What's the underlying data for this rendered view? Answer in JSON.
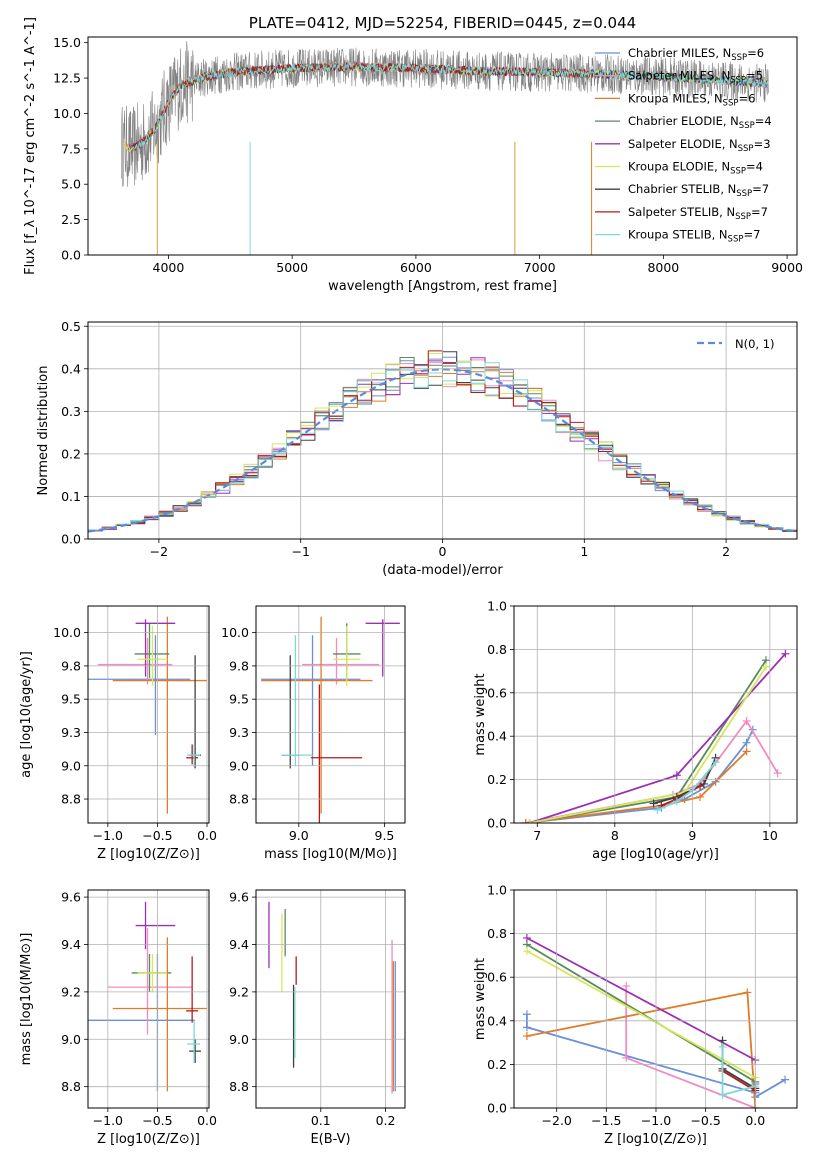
{
  "chart_data": [
    {
      "id": "spectrum",
      "type": "line",
      "title": "PLATE=0412, MJD=52254, FIBERID=0445, z=0.044",
      "xlabel": "wavelength [Angstrom, rest frame]",
      "ylabel": "Flux [f_λ 10^-17 erg cm^-2 s^-1 A^-1]",
      "xlim": [
        3350,
        9080
      ],
      "ylim": [
        0,
        15.4
      ],
      "xticks": [
        4000,
        5000,
        6000,
        7000,
        8000,
        9000
      ],
      "yticks": [
        0.0,
        2.5,
        5.0,
        7.5,
        10.0,
        12.5,
        15.0
      ],
      "grid": false,
      "legend_position": "top-right",
      "legend": [
        {
          "label": "Chabrier MILES, N",
          "sub": "SSP",
          "tail": "=6",
          "color": "#6b8fd6"
        },
        {
          "label": "Salpeter MILES, N",
          "sub": "SSP",
          "tail": "=5",
          "color": "#f08cc0"
        },
        {
          "label": "Kroupa MILES, N",
          "sub": "SSP",
          "tail": "=6",
          "color": "#e07b2a"
        },
        {
          "label": "Chabrier ELODIE, N",
          "sub": "SSP",
          "tail": "=4",
          "color": "#5a8a5a"
        },
        {
          "label": "Salpeter ELODIE, N",
          "sub": "SSP",
          "tail": "=3",
          "color": "#9b30b0"
        },
        {
          "label": "Kroupa ELODIE, N",
          "sub": "SSP",
          "tail": "=4",
          "color": "#d4e85a"
        },
        {
          "label": "Chabrier STELIB, N",
          "sub": "SSP",
          "tail": "=7",
          "color": "#404040"
        },
        {
          "label": "Salpeter STELIB, N",
          "sub": "SSP",
          "tail": "=7",
          "color": "#b01c1c"
        },
        {
          "label": "Kroupa STELIB, N",
          "sub": "SSP",
          "tail": "=7",
          "color": "#7fd8d8"
        }
      ],
      "data_color": "#808080",
      "continuum": {
        "x": [
          3620,
          3700,
          3800,
          3900,
          4000,
          4100,
          4300,
          4500,
          5000,
          5500,
          6000,
          6500,
          7000,
          7500,
          8000,
          8500,
          8850
        ],
        "y": [
          7.8,
          7.5,
          8.0,
          9.0,
          10.8,
          12.0,
          12.6,
          12.9,
          13.2,
          13.3,
          13.2,
          13.0,
          12.9,
          12.8,
          12.6,
          12.3,
          12.1
        ]
      }
    },
    {
      "id": "residuals",
      "type": "histogram",
      "xlabel": "(data-model)/error",
      "ylabel": "Normed distribution",
      "xlim": [
        -2.5,
        2.5
      ],
      "ylim": [
        0,
        0.51
      ],
      "xticks": [
        -2,
        -1,
        0,
        1,
        2
      ],
      "yticks": [
        0.0,
        0.1,
        0.2,
        0.3,
        0.4,
        0.5
      ],
      "grid": true,
      "legend_position": "top-right",
      "normal_label": "N(0, 1)",
      "normal_color": "#5b8cd9",
      "bin_width": 0.1
    },
    {
      "id": "age-vs-Z",
      "type": "errorbar",
      "xlabel": "Z [log10(Z/Z⊙)]",
      "ylabel": "age [log10(age/yr)]",
      "xlim": [
        -1.2,
        0.02
      ],
      "ylim": [
        8.57,
        10.2
      ],
      "xticks": [
        -1.0,
        -0.5,
        0.0
      ],
      "yticks": [
        8.75,
        9.0,
        9.25,
        9.5,
        9.75,
        10.0
      ],
      "grid": true,
      "points": [
        {
          "x": -0.52,
          "xerr": [
            0.68,
            0.35
          ],
          "y": 9.65,
          "yerr": [
            0.42,
            0.33
          ],
          "color": "#6b8fd6"
        },
        {
          "x": -0.6,
          "xerr": [
            0.5,
            0.25
          ],
          "y": 9.76,
          "yerr": [
            0.15,
            0.2
          ],
          "color": "#f08cc0"
        },
        {
          "x": -0.4,
          "xerr": [
            0.55,
            0.4
          ],
          "y": 9.64,
          "yerr": [
            1.0,
            0.48
          ],
          "color": "#e07b2a"
        },
        {
          "x": -0.58,
          "xerr": [
            0.15,
            0.2
          ],
          "y": 9.84,
          "yerr": [
            0.18,
            0.23
          ],
          "color": "#5a8a5a"
        },
        {
          "x": -0.62,
          "xerr": [
            0.1,
            0.3
          ],
          "y": 10.07,
          "yerr": [
            0.4,
            0.03
          ],
          "color": "#9b30b0"
        },
        {
          "x": -0.55,
          "xerr": [
            0.15,
            0.15
          ],
          "y": 9.8,
          "yerr": [
            0.2,
            0.25
          ],
          "color": "#d4e85a"
        },
        {
          "x": -0.12,
          "xerr": [
            0.06,
            0.06
          ],
          "y": 9.08,
          "yerr": [
            0.1,
            0.75
          ],
          "color": "#404040"
        },
        {
          "x": -0.15,
          "xerr": [
            0.06,
            0.06
          ],
          "y": 9.06,
          "yerr": [
            0.05,
            0.1
          ],
          "color": "#b01c1c"
        },
        {
          "x": -0.13,
          "xerr": [
            0.07,
            0.06
          ],
          "y": 9.08,
          "yerr": [
            0.08,
            0.08
          ],
          "color": "#7fd8d8"
        }
      ]
    },
    {
      "id": "age-vs-mass",
      "type": "errorbar",
      "xlabel": "mass [log10(M/M⊙)]",
      "ylabel": "",
      "xlim": [
        8.75,
        9.62
      ],
      "ylim": [
        8.57,
        10.2
      ],
      "xticks": [
        9.0,
        9.5
      ],
      "yticks": [
        8.75,
        9.0,
        9.25,
        9.5,
        9.75,
        10.0
      ],
      "grid": true,
      "points": [
        {
          "x": 9.08,
          "xerr": [
            0.3,
            0.28
          ],
          "y": 9.65,
          "yerr": [
            0.65,
            0.33
          ],
          "color": "#6b8fd6"
        },
        {
          "x": 9.22,
          "xerr": [
            0.2,
            0.25
          ],
          "y": 9.76,
          "yerr": [
            0.15,
            0.2
          ],
          "color": "#f08cc0"
        },
        {
          "x": 9.13,
          "xerr": [
            0.35,
            0.3
          ],
          "y": 9.64,
          "yerr": [
            1.0,
            0.48
          ],
          "color": "#e07b2a"
        },
        {
          "x": 9.28,
          "xerr": [
            0.08,
            0.08
          ],
          "y": 9.84,
          "yerr": [
            0.18,
            0.23
          ],
          "color": "#5a8a5a"
        },
        {
          "x": 9.49,
          "xerr": [
            0.1,
            0.1
          ],
          "y": 10.07,
          "yerr": [
            0.4,
            0.03
          ],
          "color": "#9b30b0"
        },
        {
          "x": 9.28,
          "xerr": [
            0.08,
            0.08
          ],
          "y": 9.8,
          "yerr": [
            0.2,
            0.25
          ],
          "color": "#d4e85a"
        },
        {
          "x": 8.95,
          "xerr": [
            0.05,
            0.05
          ],
          "y": 9.08,
          "yerr": [
            0.1,
            0.75
          ],
          "color": "#404040"
        },
        {
          "x": 9.12,
          "xerr": [
            0.05,
            0.25
          ],
          "y": 9.06,
          "yerr": [
            0.5,
            0.55
          ],
          "color": "#b01c1c"
        },
        {
          "x": 8.98,
          "xerr": [
            0.08,
            0.1
          ],
          "y": 9.08,
          "yerr": [
            0.08,
            0.9
          ],
          "color": "#7fd8d8"
        }
      ]
    },
    {
      "id": "weight-vs-age",
      "type": "line",
      "xlabel": "age [log10(age/yr)]",
      "ylabel": "mass weight",
      "xlim": [
        6.7,
        10.35
      ],
      "ylim": [
        0,
        1.0
      ],
      "xticks": [
        7,
        8,
        9,
        10
      ],
      "yticks": [
        0.0,
        0.2,
        0.4,
        0.6,
        0.8,
        1.0
      ],
      "grid": true,
      "series": [
        {
          "color": "#6b8fd6",
          "x": [
            6.85,
            8.6,
            8.9,
            9.3,
            9.7,
            9.78
          ],
          "y": [
            0.0,
            0.07,
            0.11,
            0.19,
            0.37,
            0.43
          ]
        },
        {
          "color": "#f08cc0",
          "x": [
            6.85,
            8.75,
            9.1,
            9.7,
            10.1
          ],
          "y": [
            0.0,
            0.13,
            0.18,
            0.47,
            0.23
          ]
        },
        {
          "color": "#e07b2a",
          "x": [
            6.85,
            8.6,
            9.1,
            9.7
          ],
          "y": [
            0.0,
            0.08,
            0.12,
            0.33
          ]
        },
        {
          "color": "#5a8a5a",
          "x": [
            6.9,
            8.8,
            9.95
          ],
          "y": [
            0.0,
            0.12,
            0.75
          ]
        },
        {
          "color": "#9b30b0",
          "x": [
            6.9,
            8.8,
            10.2
          ],
          "y": [
            0.0,
            0.22,
            0.78
          ]
        },
        {
          "color": "#d4e85a",
          "x": [
            6.9,
            8.9,
            9.95
          ],
          "y": [
            0.0,
            0.14,
            0.72
          ]
        },
        {
          "color": "#404040",
          "x": [
            8.5,
            8.8,
            9.15,
            9.3
          ],
          "y": [
            0.09,
            0.12,
            0.18,
            0.3
          ]
        },
        {
          "color": "#b01c1c",
          "x": [
            8.6,
            8.8,
            9.1
          ],
          "y": [
            0.08,
            0.11,
            0.17
          ]
        },
        {
          "color": "#7fd8d8",
          "x": [
            8.55,
            8.8,
            9.0,
            9.3
          ],
          "y": [
            0.06,
            0.1,
            0.15,
            0.28
          ]
        }
      ]
    },
    {
      "id": "mass-vs-Z",
      "type": "errorbar",
      "xlabel": "Z [log10(Z/Z⊙)]",
      "ylabel": "mass [log10(M/M⊙)]",
      "xlim": [
        -1.2,
        0.02
      ],
      "ylim": [
        8.71,
        9.63
      ],
      "xticks": [
        -1.0,
        -0.5,
        0.0
      ],
      "yticks": [
        8.8,
        9.0,
        9.2,
        9.4,
        9.6
      ],
      "grid": true,
      "points": [
        {
          "x": -0.5,
          "xerr": [
            0.7,
            0.38
          ],
          "y": 9.08,
          "yerr": [
            0.3,
            0.28
          ],
          "color": "#6b8fd6"
        },
        {
          "x": -0.6,
          "xerr": [
            0.4,
            0.45
          ],
          "y": 9.22,
          "yerr": [
            0.2,
            0.25
          ],
          "color": "#f08cc0"
        },
        {
          "x": -0.4,
          "xerr": [
            0.55,
            0.4
          ],
          "y": 9.13,
          "yerr": [
            0.35,
            0.3
          ],
          "color": "#e07b2a"
        },
        {
          "x": -0.58,
          "xerr": [
            0.18,
            0.22
          ],
          "y": 9.28,
          "yerr": [
            0.08,
            0.08
          ],
          "color": "#5a8a5a"
        },
        {
          "x": -0.62,
          "xerr": [
            0.1,
            0.3
          ],
          "y": 9.48,
          "yerr": [
            0.1,
            0.1
          ],
          "color": "#9b30b0"
        },
        {
          "x": -0.55,
          "xerr": [
            0.15,
            0.15
          ],
          "y": 9.28,
          "yerr": [
            0.08,
            0.08
          ],
          "color": "#d4e85a"
        },
        {
          "x": -0.12,
          "xerr": [
            0.06,
            0.06
          ],
          "y": 8.95,
          "yerr": [
            0.05,
            0.05
          ],
          "color": "#404040"
        },
        {
          "x": -0.15,
          "xerr": [
            0.06,
            0.06
          ],
          "y": 9.12,
          "yerr": [
            0.05,
            0.23
          ],
          "color": "#b01c1c"
        },
        {
          "x": -0.13,
          "xerr": [
            0.07,
            0.06
          ],
          "y": 8.98,
          "yerr": [
            0.08,
            0.1
          ],
          "color": "#7fd8d8"
        }
      ]
    },
    {
      "id": "mass-vs-ebv",
      "type": "errorbar",
      "xlabel": "E(B-V)",
      "ylabel": "",
      "xlim": [
        0.0,
        0.23
      ],
      "ylim": [
        8.71,
        9.63
      ],
      "xticks": [
        0.1,
        0.2
      ],
      "yticks": [
        8.8,
        9.0,
        9.2,
        9.4,
        9.6
      ],
      "grid": true,
      "points": [
        {
          "x": 0.215,
          "xerr": [
            0,
            0
          ],
          "y": 9.08,
          "yerr": [
            0.3,
            0.25
          ],
          "color": "#6b8fd6"
        },
        {
          "x": 0.21,
          "xerr": [
            0,
            0
          ],
          "y": 9.22,
          "yerr": [
            0.45,
            0.2
          ],
          "color": "#f08cc0"
        },
        {
          "x": 0.212,
          "xerr": [
            0,
            0
          ],
          "y": 9.13,
          "yerr": [
            0.35,
            0.2
          ],
          "color": "#e07b2a"
        },
        {
          "x": 0.045,
          "xerr": [
            0,
            0
          ],
          "y": 9.45,
          "yerr": [
            0.1,
            0.1
          ],
          "color": "#5a8a5a"
        },
        {
          "x": 0.02,
          "xerr": [
            0,
            0
          ],
          "y": 9.45,
          "yerr": [
            0.15,
            0.13
          ],
          "color": "#9b30b0"
        },
        {
          "x": 0.04,
          "xerr": [
            0,
            0
          ],
          "y": 9.38,
          "yerr": [
            0.18,
            0.15
          ],
          "color": "#d4e85a"
        },
        {
          "x": 0.058,
          "xerr": [
            0,
            0
          ],
          "y": 9.05,
          "yerr": [
            0.17,
            0.18
          ],
          "color": "#404040"
        },
        {
          "x": 0.062,
          "xerr": [
            0,
            0
          ],
          "y": 9.25,
          "yerr": [
            0.02,
            0.1
          ],
          "color": "#b01c1c"
        },
        {
          "x": 0.06,
          "xerr": [
            0,
            0
          ],
          "y": 9.05,
          "yerr": [
            0.13,
            0.17
          ],
          "color": "#7fd8d8"
        }
      ]
    },
    {
      "id": "weight-vs-Z",
      "type": "line",
      "xlabel": "Z [log10(Z/Z⊙)]",
      "ylabel": "mass weight",
      "xlim": [
        -2.43,
        0.42
      ],
      "ylim": [
        0,
        1.0
      ],
      "xticks": [
        -2.0,
        -1.5,
        -1.0,
        -0.5,
        0.0
      ],
      "yticks": [
        0.0,
        0.2,
        0.4,
        0.6,
        0.8,
        1.0
      ],
      "grid": true,
      "series": [
        {
          "color": "#6b8fd6",
          "x": [
            -2.3,
            -2.3,
            0.0,
            0.0,
            0.0,
            0.3
          ],
          "y": [
            0.43,
            0.37,
            0.07,
            0.11,
            0.05,
            0.13
          ]
        },
        {
          "color": "#f08cc0",
          "x": [
            -1.3,
            -1.3,
            0.0
          ],
          "y": [
            0.56,
            0.23,
            0.0
          ]
        },
        {
          "color": "#e07b2a",
          "x": [
            -2.3,
            -0.08,
            0.0
          ],
          "y": [
            0.33,
            0.53,
            0.0
          ]
        },
        {
          "color": "#5a8a5a",
          "x": [
            -2.3,
            0.0
          ],
          "y": [
            0.75,
            0.12
          ]
        },
        {
          "color": "#9b30b0",
          "x": [
            -2.3,
            0.0
          ],
          "y": [
            0.78,
            0.22
          ]
        },
        {
          "color": "#d4e85a",
          "x": [
            -2.3,
            0.0
          ],
          "y": [
            0.72,
            0.14
          ]
        },
        {
          "color": "#404040",
          "x": [
            -0.33,
            -0.33,
            0.0
          ],
          "y": [
            0.31,
            0.18,
            0.09
          ]
        },
        {
          "color": "#b01c1c",
          "x": [
            -0.33,
            0.0
          ],
          "y": [
            0.17,
            0.08
          ]
        },
        {
          "color": "#7fd8d8",
          "x": [
            -0.33,
            -0.33,
            0.0
          ],
          "y": [
            0.28,
            0.06,
            0.1
          ]
        }
      ]
    }
  ]
}
